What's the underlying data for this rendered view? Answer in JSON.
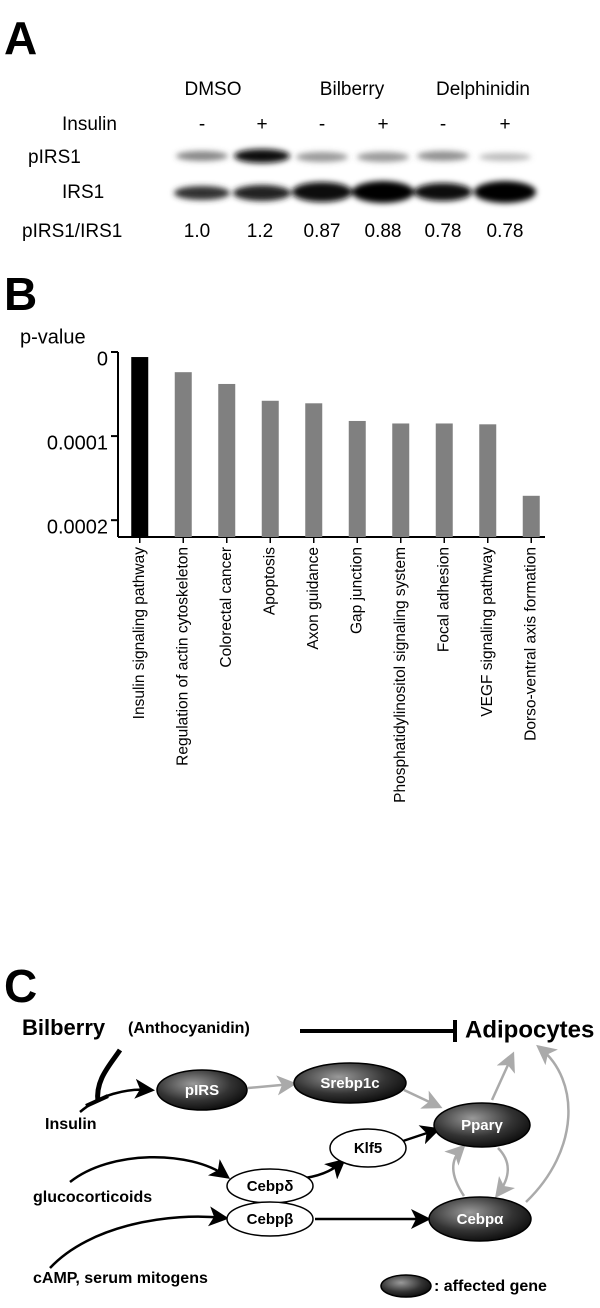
{
  "panel_a": {
    "letter": "A",
    "groups": [
      "DMSO",
      "Bilberry",
      "Delphinidin"
    ],
    "insulin_label": "Insulin",
    "insulin": [
      "-",
      "+",
      "-",
      "+",
      "-",
      "+"
    ],
    "rows": [
      "pIRS1",
      "IRS1"
    ],
    "ratio_label": "pIRS1/IRS1",
    "ratios": [
      "1.0",
      "1.2",
      "0.87",
      "0.88",
      "0.78",
      "0.78"
    ]
  },
  "chart_data": {
    "type": "bar",
    "letter": "B",
    "ylabel": "p-value",
    "categories": [
      "Insulin signaling pathway",
      "Regulation of actin cytoskeleton",
      "Colorectal cancer",
      "Apoptosis",
      "Axon guidance",
      "Gap junction",
      "Phosphatidylinositol signaling system",
      "Focal adhesion",
      "VEGF signaling pathway",
      "Dorso-ventral axis formation"
    ],
    "values": [
      6e-06,
      2.4e-05,
      3.8e-05,
      5.8e-05,
      6.1e-05,
      8.2e-05,
      8.5e-05,
      8.5e-05,
      8.6e-05,
      0.000171
    ],
    "colors": [
      "#000000",
      "#808080",
      "#808080",
      "#808080",
      "#808080",
      "#808080",
      "#808080",
      "#808080",
      "#808080",
      "#808080"
    ],
    "ylim": [
      0,
      0.00022
    ],
    "yticks": [
      0,
      0.0001,
      0.0002
    ],
    "y_inverted": true
  },
  "panel_c": {
    "letter": "C",
    "source": "Bilberry",
    "source_note": "(Anthocyanidin)",
    "target": "Adipocytes",
    "nodes": [
      "pIRS",
      "Srebp1c",
      "Pparγ",
      "Klf5",
      "Cebpδ",
      "Cebpβ",
      "Cebpα"
    ],
    "inputs": [
      "Insulin",
      "glucocorticoids",
      "cAMP, serum mitogens"
    ],
    "legend": ": affected gene"
  }
}
